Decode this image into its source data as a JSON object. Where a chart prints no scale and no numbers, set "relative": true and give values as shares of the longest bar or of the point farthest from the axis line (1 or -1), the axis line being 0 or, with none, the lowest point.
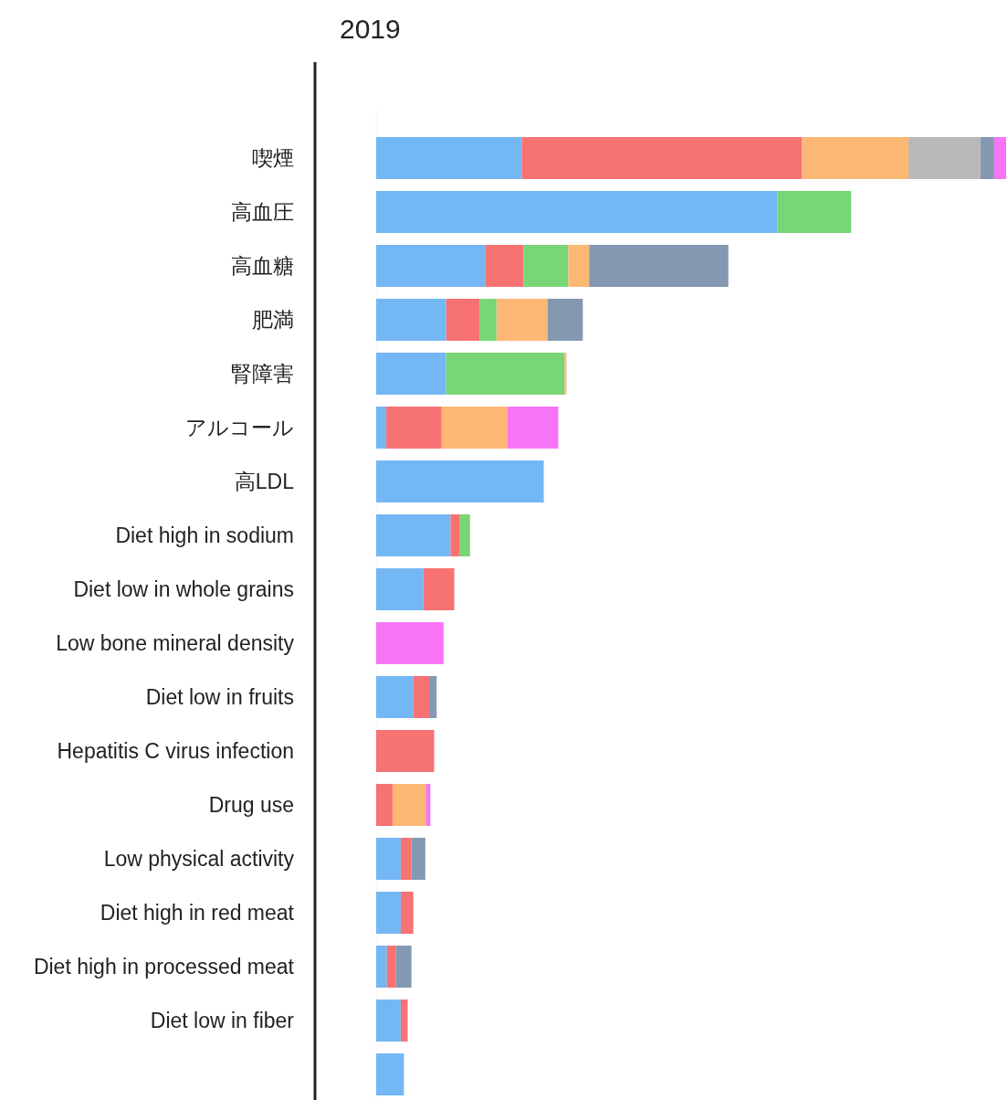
{
  "chart_data": {
    "type": "bar",
    "orientation": "horizontal",
    "stacked": true,
    "relative": true,
    "title": "2019",
    "categories": [
      "喫煙",
      "高血圧",
      "高血糖",
      "肥満",
      "腎障害",
      "アルコール",
      "高LDL",
      "Diet high in sodium",
      "Diet low in whole grains",
      "Low bone mineral density",
      "Diet low in fruits",
      "Hepatitis C virus infection",
      "Drug use",
      "Low physical activity",
      "Diet high in red meat",
      "Diet high in processed meat",
      "Diet low in fiber",
      null
    ],
    "series": [
      {
        "color": "#74b7f5",
        "values": [
          0.231,
          0.637,
          0.173,
          0.111,
          0.111,
          0.016,
          0.266,
          0.118,
          0.075,
          null,
          0.059,
          null,
          null,
          0.039,
          0.039,
          0.017,
          0.039,
          0.044
        ]
      },
      {
        "color": "#f77273",
        "values": [
          0.445,
          null,
          0.061,
          0.053,
          null,
          0.088,
          null,
          0.015,
          0.049,
          null,
          0.025,
          0.092,
          0.026,
          0.017,
          0.02,
          0.014,
          0.011,
          null
        ]
      },
      {
        "color": "#79d676",
        "values": [
          null,
          0.117,
          0.071,
          0.027,
          0.188,
          null,
          null,
          0.016,
          null,
          null,
          null,
          null,
          null,
          null,
          null,
          null,
          null,
          null
        ]
      },
      {
        "color": "#fdb775",
        "values": [
          0.169,
          null,
          0.033,
          0.081,
          0.003,
          0.104,
          null,
          null,
          null,
          null,
          null,
          null,
          0.053,
          null,
          null,
          null,
          null,
          null
        ]
      },
      {
        "color": "#b8b8b8",
        "values": [
          0.114,
          null,
          null,
          null,
          null,
          null,
          null,
          null,
          null,
          null,
          null,
          null,
          null,
          null,
          null,
          null,
          null,
          null
        ]
      },
      {
        "color": "#8499b1",
        "values": [
          0.022,
          null,
          0.221,
          0.056,
          null,
          null,
          null,
          null,
          null,
          null,
          0.012,
          null,
          null,
          0.022,
          null,
          0.025,
          null,
          null
        ]
      },
      {
        "color": "#f774f7",
        "values": [
          0.019,
          null,
          null,
          null,
          null,
          0.081,
          null,
          null,
          null,
          0.107,
          null,
          null,
          0.007,
          null,
          null,
          null,
          null,
          null
        ]
      }
    ]
  }
}
